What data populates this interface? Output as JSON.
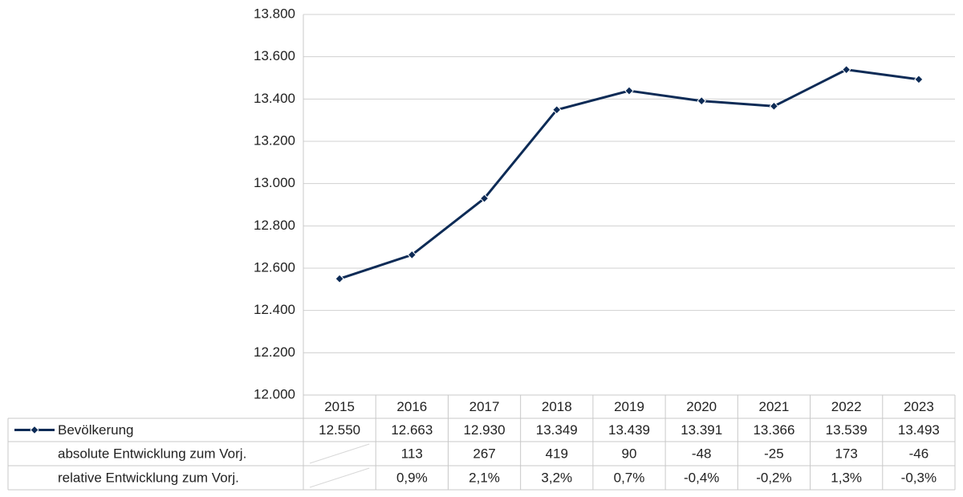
{
  "chart_data": {
    "type": "line",
    "categories": [
      "2015",
      "2016",
      "2017",
      "2018",
      "2019",
      "2020",
      "2021",
      "2022",
      "2023"
    ],
    "series": [
      {
        "name": "Bevölkerung",
        "color": "#0d2b56",
        "values": [
          12550,
          12663,
          12930,
          13349,
          13439,
          13391,
          13366,
          13539,
          13493
        ],
        "value_labels": [
          "12.550",
          "12.663",
          "12.930",
          "13.349",
          "13.439",
          "13.391",
          "13.366",
          "13.539",
          "13.493"
        ]
      }
    ],
    "table_rows": [
      {
        "name": "absolute Entwicklung zum Vorj.",
        "values": [
          null,
          113,
          267,
          419,
          90,
          -48,
          -25,
          173,
          -46
        ]
      },
      {
        "name": "relative Entwicklung zum Vorj.",
        "values": [
          null,
          0.9,
          2.1,
          3.2,
          0.7,
          -0.4,
          -0.2,
          1.3,
          -0.3
        ],
        "value_labels": [
          null,
          "0,9%",
          "2,1%",
          "3,2%",
          "0,7%",
          "-0,4%",
          "-0,2%",
          "1,3%",
          "-0,3%"
        ]
      }
    ],
    "ylim": [
      12000,
      13800
    ],
    "yticks": [
      {
        "value": 12000,
        "label": "12.000"
      },
      {
        "value": 12200,
        "label": "12.200"
      },
      {
        "value": 12400,
        "label": "12.400"
      },
      {
        "value": 12600,
        "label": "12.600"
      },
      {
        "value": 12800,
        "label": "12.800"
      },
      {
        "value": 13000,
        "label": "13.000"
      },
      {
        "value": 13200,
        "label": "13.200"
      },
      {
        "value": 13400,
        "label": "13.400"
      },
      {
        "value": 13600,
        "label": "13.600"
      },
      {
        "value": 13800,
        "label": "13.800"
      }
    ],
    "grid": true
  }
}
